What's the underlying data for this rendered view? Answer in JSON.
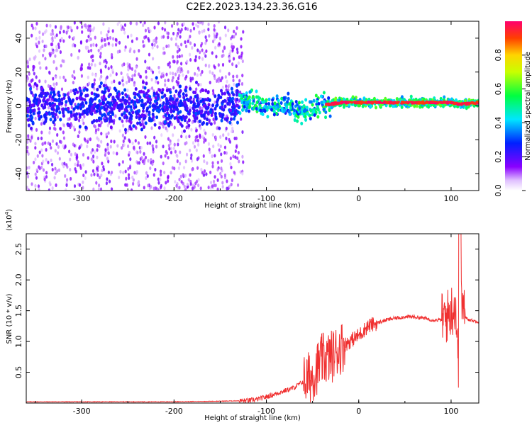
{
  "title": "C2E2.2023.134.23.36.G16",
  "top_panel": {
    "xlabel": "Height of straight line (km)",
    "ylabel": "Frequency (Hz)",
    "xticks": [
      "-300",
      "-200",
      "-100",
      "0",
      "100"
    ],
    "yticks": [
      "-40",
      "-20",
      "0",
      "20",
      "40"
    ],
    "colorbar": {
      "label": "Normalized spectral amplitude",
      "ticks": [
        "0.0",
        "0.2",
        "0.4",
        "0.6",
        "0.8"
      ],
      "range": [
        0,
        1
      ],
      "palette": [
        "#ffffff",
        "#8a00ff",
        "#0020ff",
        "#00e6ff",
        "#00ff40",
        "#c8ff00",
        "#ffd400",
        "#ff4000",
        "#ff006e"
      ]
    }
  },
  "bottom_panel": {
    "xlabel": "Height of straight line (km)",
    "ylabel": "SNR (10 * v/v)",
    "yscale_label": "(x10",
    "yscale_exp": "4",
    "yscale_close": ")",
    "xticks": [
      "-300",
      "-200",
      "-100",
      "0",
      "100"
    ],
    "yticks": [
      "0.5",
      "1.0",
      "1.5",
      "2.0",
      "2.5"
    ]
  },
  "chart_data": [
    {
      "type": "heatmap",
      "xlabel": "Height of straight line (km)",
      "ylabel": "Frequency (Hz)",
      "xlim": [
        -360,
        130
      ],
      "ylim": [
        -50,
        50
      ],
      "ridge": {
        "x": [
          -360,
          -300,
          -200,
          -140,
          -120,
          -100,
          -90,
          -80,
          -70,
          -60,
          -50,
          -40,
          -30,
          -20,
          0,
          50,
          80,
          100,
          110,
          130
        ],
        "y": [
          0,
          0,
          0,
          0,
          2,
          1,
          -1,
          1,
          -2,
          -3,
          -2,
          1,
          1,
          2,
          2,
          2,
          2,
          2,
          1,
          2
        ]
      },
      "colorbar_label": "Normalized spectral amplitude",
      "colorbar_range": [
        0,
        1
      ]
    },
    {
      "type": "line",
      "xlabel": "Height of straight line (km)",
      "ylabel": "SNR (10 * v/v)",
      "ylabel_scale": "x10^4",
      "xlim": [
        -360,
        130
      ],
      "ylim": [
        0,
        2.75
      ],
      "color": "#f03030",
      "series": [
        {
          "x": [
            -360,
            -300,
            -200,
            -150,
            -120,
            -110,
            -100,
            -90,
            -80,
            -70,
            -60,
            -50,
            -40,
            -30,
            -20,
            -10,
            0,
            10,
            20,
            30,
            40,
            50,
            60,
            70,
            80,
            90,
            95,
            100,
            105,
            108,
            110,
            115,
            120,
            130
          ],
          "y": [
            0.02,
            0.02,
            0.02,
            0.03,
            0.04,
            0.06,
            0.1,
            0.15,
            0.2,
            0.25,
            0.35,
            0.45,
            0.7,
            0.75,
            0.9,
            1.0,
            1.1,
            1.25,
            1.3,
            1.35,
            1.38,
            1.4,
            1.4,
            1.38,
            1.35,
            1.35,
            1.4,
            1.5,
            1.6,
            0.5,
            1.8,
            1.4,
            1.35,
            1.32
          ]
        }
      ]
    }
  ]
}
